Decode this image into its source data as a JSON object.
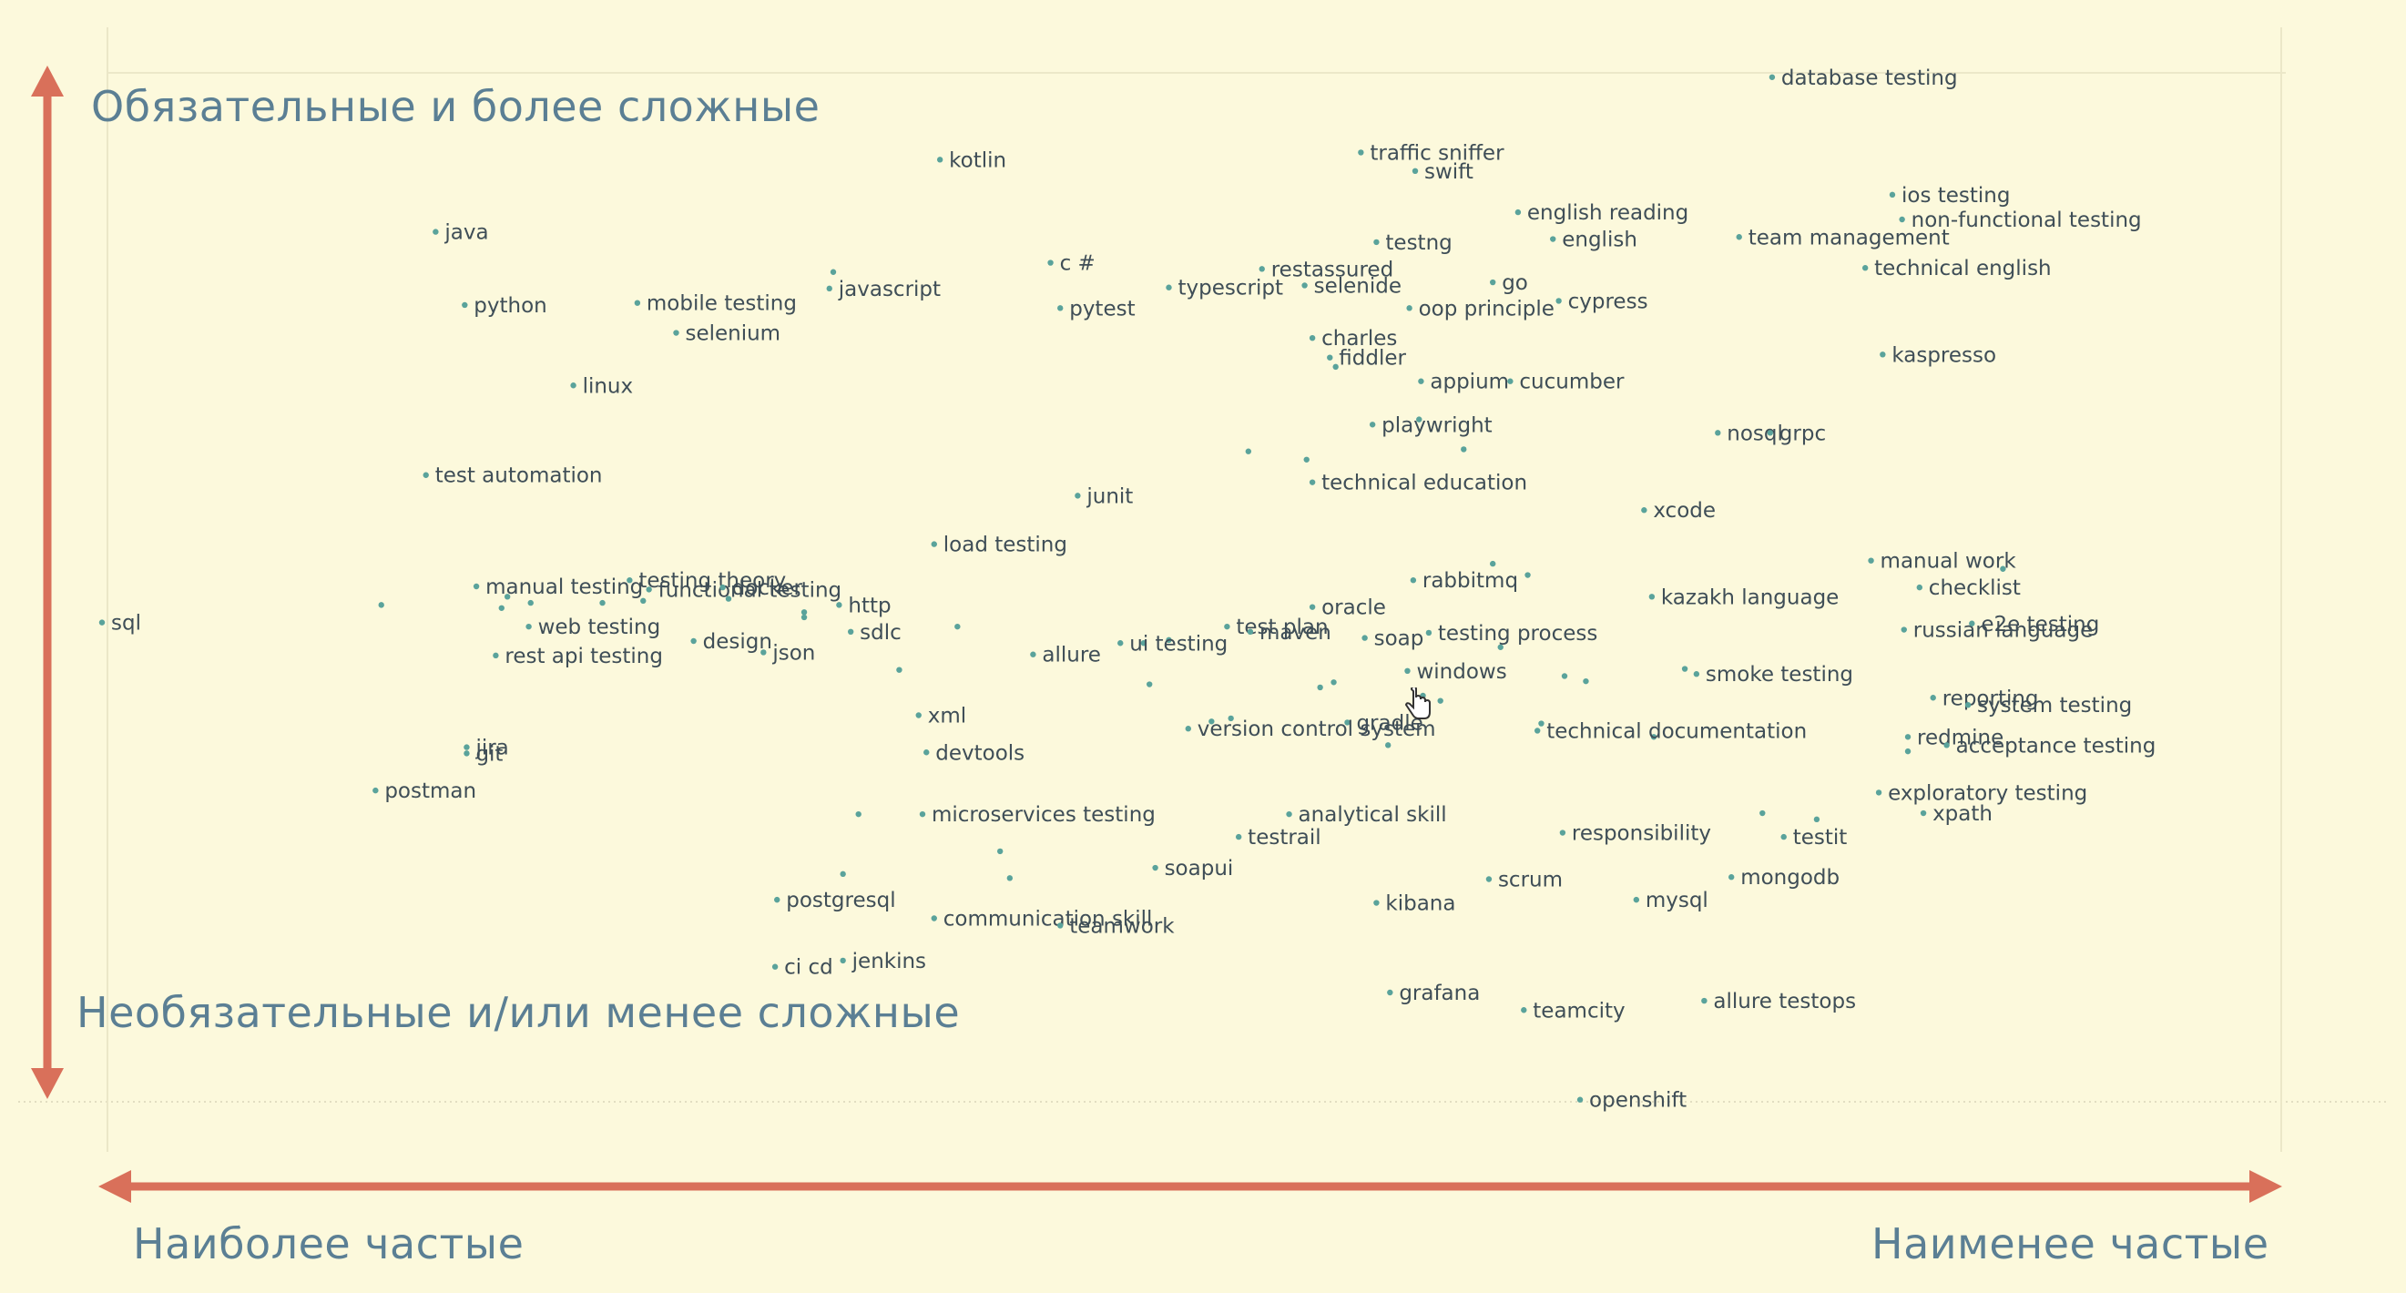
{
  "axes": {
    "y_top": "Обязательные и более сложные",
    "y_bottom": "Необязательные и/или менее сложные",
    "x_left": "Наиболее частые",
    "x_right": "Наименее частые"
  },
  "colors": {
    "background": "#fcf9dc",
    "arrow": "#d9705a",
    "axis_text": "#5b7f94",
    "label_text": "#3f4e57",
    "dot": "#5aa39b"
  },
  "chart_data": {
    "type": "scatter",
    "xlim": [
      0,
      100
    ],
    "ylim": [
      0,
      100
    ],
    "grid": false,
    "points": [
      {
        "label": "sql",
        "x": 0.0,
        "y": 46.5
      },
      {
        "label": "database testing",
        "x": 86.1,
        "y": 99.4
      },
      {
        "label": "kotlin",
        "x": 43.2,
        "y": 91.4
      },
      {
        "label": "traffic sniffer",
        "x": 64.9,
        "y": 92.1
      },
      {
        "label": "swift",
        "x": 67.7,
        "y": 90.3
      },
      {
        "label": "ios testing",
        "x": 92.3,
        "y": 88.0
      },
      {
        "label": "english reading",
        "x": 73.0,
        "y": 86.3
      },
      {
        "label": "java",
        "x": 17.2,
        "y": 84.4
      },
      {
        "label": "non-functional testing",
        "x": 92.8,
        "y": 85.6
      },
      {
        "label": "c #",
        "x": 48.9,
        "y": 81.4
      },
      {
        "label": "restassured",
        "x": 59.8,
        "y": 80.8
      },
      {
        "label": "testng",
        "x": 65.7,
        "y": 83.4
      },
      {
        "label": "english",
        "x": 74.8,
        "y": 83.7
      },
      {
        "label": "team management",
        "x": 84.4,
        "y": 83.9
      },
      {
        "label": "technical english",
        "x": 90.9,
        "y": 80.9
      },
      {
        "label": "mobile testing",
        "x": 27.6,
        "y": 77.5
      },
      {
        "label": "javascript",
        "x": 37.5,
        "y": 78.9
      },
      {
        "label": "python",
        "x": 18.7,
        "y": 77.3
      },
      {
        "label": "pytest",
        "x": 49.4,
        "y": 77.0
      },
      {
        "label": "typescript",
        "x": 55.0,
        "y": 79.0
      },
      {
        "label": "selenide",
        "x": 62.0,
        "y": 79.2
      },
      {
        "label": "go",
        "x": 71.7,
        "y": 79.5
      },
      {
        "label": "oop principle",
        "x": 67.4,
        "y": 77.0
      },
      {
        "label": "cypress",
        "x": 75.1,
        "y": 77.7
      },
      {
        "label": "charles",
        "x": 62.4,
        "y": 74.1
      },
      {
        "label": "selenium",
        "x": 29.6,
        "y": 74.6
      },
      {
        "label": "fiddler",
        "x": 63.3,
        "y": 72.2
      },
      {
        "label": "kaspresso",
        "x": 91.8,
        "y": 72.5
      },
      {
        "label": "linux",
        "x": 24.3,
        "y": 69.5
      },
      {
        "label": "appium",
        "x": 68.0,
        "y": 69.9
      },
      {
        "label": "cucumber",
        "x": 72.6,
        "y": 69.9
      },
      {
        "label": "playwright",
        "x": 65.5,
        "y": 65.7
      },
      {
        "label": "nosql",
        "x": 83.3,
        "y": 64.9
      },
      {
        "label": "grpc",
        "x": 86.0,
        "y": 64.9
      },
      {
        "label": "test automation",
        "x": 16.7,
        "y": 60.8
      },
      {
        "label": "junit",
        "x": 50.3,
        "y": 58.8
      },
      {
        "label": "technical education",
        "x": 62.4,
        "y": 60.1
      },
      {
        "label": "xcode",
        "x": 79.5,
        "y": 57.4
      },
      {
        "label": "load testing",
        "x": 42.9,
        "y": 54.1
      },
      {
        "label": "manual work",
        "x": 91.2,
        "y": 52.5
      },
      {
        "label": "manual testing",
        "x": 19.3,
        "y": 50.0
      },
      {
        "label": "testing theory",
        "x": 27.2,
        "y": 50.6
      },
      {
        "label": "functional testing",
        "x": 28.2,
        "y": 49.7
      },
      {
        "label": "rabbitmq",
        "x": 67.6,
        "y": 50.6
      },
      {
        "label": "kazakh language",
        "x": 79.9,
        "y": 49.0
      },
      {
        "label": "docker",
        "x": 32.0,
        "y": 49.9
      },
      {
        "label": "test plan",
        "x": 58.0,
        "y": 46.1
      },
      {
        "label": "http",
        "x": 38.0,
        "y": 48.2
      },
      {
        "label": "checklist",
        "x": 93.7,
        "y": 49.9
      },
      {
        "label": "oracle",
        "x": 62.4,
        "y": 48.0
      },
      {
        "label": "testing process",
        "x": 68.4,
        "y": 45.5
      },
      {
        "label": "russian language",
        "x": 92.9,
        "y": 45.8
      },
      {
        "label": "web testing",
        "x": 22.0,
        "y": 46.1
      },
      {
        "label": "maven",
        "x": 59.2,
        "y": 45.6
      },
      {
        "label": "sdlc",
        "x": 38.6,
        "y": 45.6
      },
      {
        "label": "soap",
        "x": 65.1,
        "y": 45.0
      },
      {
        "label": "rest api testing",
        "x": 20.3,
        "y": 43.3
      },
      {
        "label": "design",
        "x": 30.5,
        "y": 44.7
      },
      {
        "label": "json",
        "x": 34.1,
        "y": 43.6
      },
      {
        "label": "allure",
        "x": 48.0,
        "y": 43.4
      },
      {
        "label": "ui testing",
        "x": 52.5,
        "y": 44.5
      },
      {
        "label": "e2e testing",
        "x": 96.4,
        "y": 46.4
      },
      {
        "label": "windows",
        "x": 67.3,
        "y": 41.8
      },
      {
        "label": "smoke testing",
        "x": 82.2,
        "y": 41.5
      },
      {
        "label": "reporting",
        "x": 94.4,
        "y": 39.2
      },
      {
        "label": "system testing",
        "x": 96.2,
        "y": 38.5
      },
      {
        "label": "xml",
        "x": 42.1,
        "y": 37.5
      },
      {
        "label": "gradle",
        "x": 64.2,
        "y": 36.8
      },
      {
        "label": "version control system",
        "x": 56.0,
        "y": 36.2
      },
      {
        "label": "technical documentation",
        "x": 74.0,
        "y": 36.0
      },
      {
        "label": "redmine",
        "x": 93.1,
        "y": 35.4
      },
      {
        "label": "acceptance testing",
        "x": 95.1,
        "y": 34.6
      },
      {
        "label": "devtools",
        "x": 42.5,
        "y": 33.9
      },
      {
        "label": "jira",
        "x": 18.8,
        "y": 34.4
      },
      {
        "label": "git",
        "x": 18.8,
        "y": 33.8
      },
      {
        "label": "exploratory testing",
        "x": 91.6,
        "y": 30.0
      },
      {
        "label": "postman",
        "x": 14.1,
        "y": 30.2
      },
      {
        "label": "analytical skill",
        "x": 61.2,
        "y": 27.9
      },
      {
        "label": "xpath",
        "x": 93.9,
        "y": 28.0
      },
      {
        "label": "testit",
        "x": 86.7,
        "y": 25.7
      },
      {
        "label": "microservices testing",
        "x": 42.3,
        "y": 27.9
      },
      {
        "label": "testrail",
        "x": 58.6,
        "y": 25.7
      },
      {
        "label": "responsibility",
        "x": 75.3,
        "y": 26.1
      },
      {
        "label": "soapui",
        "x": 54.3,
        "y": 22.7
      },
      {
        "label": "scrum",
        "x": 71.5,
        "y": 21.6
      },
      {
        "label": "mysql",
        "x": 79.1,
        "y": 19.6
      },
      {
        "label": "mongodb",
        "x": 84.0,
        "y": 21.8
      },
      {
        "label": "postgresql",
        "x": 34.8,
        "y": 19.6
      },
      {
        "label": "communication skill",
        "x": 42.9,
        "y": 17.8
      },
      {
        "label": "teamwork",
        "x": 49.4,
        "y": 17.1
      },
      {
        "label": "kibana",
        "x": 65.7,
        "y": 19.3
      },
      {
        "label": "jenkins",
        "x": 38.2,
        "y": 13.7
      },
      {
        "label": "ci cd",
        "x": 34.7,
        "y": 13.1
      },
      {
        "label": "grafana",
        "x": 66.4,
        "y": 10.6
      },
      {
        "label": "teamcity",
        "x": 73.3,
        "y": 8.9
      },
      {
        "label": "allure testops",
        "x": 82.6,
        "y": 9.8
      },
      {
        "label": "openshift",
        "x": 76.2,
        "y": 0.2
      }
    ],
    "extra_dots": [
      {
        "x": 14.4,
        "y": 48.2
      },
      {
        "x": 20.6,
        "y": 47.9
      },
      {
        "x": 20.9,
        "y": 49.0
      },
      {
        "x": 22.1,
        "y": 48.4
      },
      {
        "x": 25.8,
        "y": 48.4
      },
      {
        "x": 27.9,
        "y": 48.6
      },
      {
        "x": 32.3,
        "y": 48.8
      },
      {
        "x": 36.2,
        "y": 47.5
      },
      {
        "x": 36.2,
        "y": 47.0
      },
      {
        "x": 44.1,
        "y": 46.1
      },
      {
        "x": 41.1,
        "y": 41.9
      },
      {
        "x": 54.0,
        "y": 40.5
      },
      {
        "x": 53.7,
        "y": 44.5
      },
      {
        "x": 55.0,
        "y": 44.8
      },
      {
        "x": 58.2,
        "y": 37.2
      },
      {
        "x": 57.2,
        "y": 36.9
      },
      {
        "x": 63.5,
        "y": 40.7
      },
      {
        "x": 62.8,
        "y": 40.2
      },
      {
        "x": 66.3,
        "y": 34.6
      },
      {
        "x": 68.1,
        "y": 39.4
      },
      {
        "x": 69.0,
        "y": 38.9
      },
      {
        "x": 71.7,
        "y": 52.2
      },
      {
        "x": 73.5,
        "y": 51.1
      },
      {
        "x": 72.1,
        "y": 44.1
      },
      {
        "x": 74.2,
        "y": 36.7
      },
      {
        "x": 75.4,
        "y": 41.3
      },
      {
        "x": 76.5,
        "y": 40.8
      },
      {
        "x": 80.0,
        "y": 35.4
      },
      {
        "x": 81.6,
        "y": 42.0
      },
      {
        "x": 93.1,
        "y": 34.0
      },
      {
        "x": 98.0,
        "y": 51.7
      },
      {
        "x": 88.4,
        "y": 27.4
      },
      {
        "x": 85.6,
        "y": 28.0
      },
      {
        "x": 67.9,
        "y": 66.2
      },
      {
        "x": 70.2,
        "y": 63.3
      },
      {
        "x": 59.1,
        "y": 63.1
      },
      {
        "x": 62.1,
        "y": 62.3
      },
      {
        "x": 39.0,
        "y": 27.9
      },
      {
        "x": 46.3,
        "y": 24.3
      },
      {
        "x": 46.8,
        "y": 21.7
      },
      {
        "x": 38.2,
        "y": 22.1
      },
      {
        "x": 63.6,
        "y": 71.3
      },
      {
        "x": 37.7,
        "y": 80.5
      }
    ]
  }
}
